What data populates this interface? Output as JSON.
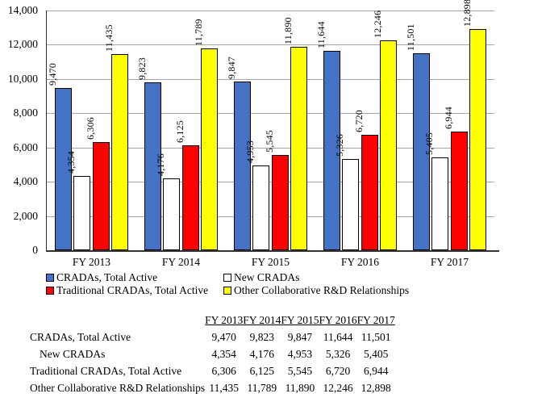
{
  "chart_data": {
    "type": "bar",
    "title": "",
    "xlabel": "",
    "ylabel": "",
    "categories": [
      "FY 2013",
      "FY 2014",
      "FY 2015",
      "FY 2016",
      "FY 2017"
    ],
    "series": [
      {
        "name": "CRADAs, Total Active",
        "color": "#4472C4",
        "values": [
          9470,
          9823,
          9847,
          11644,
          11501
        ]
      },
      {
        "name": "New CRADAs",
        "color": "#FFFFFF",
        "values": [
          4354,
          4176,
          4953,
          5326,
          5405
        ]
      },
      {
        "name": "Traditional CRADAs, Total Active",
        "color": "#FF0000",
        "values": [
          6306,
          6125,
          5545,
          6720,
          6944
        ]
      },
      {
        "name": "Other Collaborative R&D Relationships",
        "color": "#FFFF00",
        "values": [
          11435,
          11789,
          11890,
          12246,
          12898
        ]
      }
    ],
    "ylim": [
      0,
      14000
    ],
    "ytick_interval": 2000,
    "ytick_labels": [
      "0",
      "2,000",
      "4,000",
      "6,000",
      "8,000",
      "10,000",
      "12,000",
      "14,000"
    ],
    "grid": true,
    "gridline_color": "#A6A6A6",
    "axis_color": "#333333",
    "bar_border_color": "#000000",
    "value_labels_rotated": true,
    "legend_position": "bottom"
  },
  "table": {
    "column_headers": [
      "FY 2013",
      "FY 2014",
      "FY 2015",
      "FY 2016",
      "FY 2017"
    ],
    "rows": [
      {
        "label": "CRADAs, Total Active",
        "indent": false,
        "values": [
          "9,470",
          "9,823",
          "9,847",
          "11,644",
          "11,501"
        ]
      },
      {
        "label": "New CRADAs",
        "indent": true,
        "values": [
          "4,354",
          "4,176",
          "4,953",
          "5,326",
          "5,405"
        ]
      },
      {
        "label": "Traditional CRADAs, Total Active",
        "indent": false,
        "values": [
          "6,306",
          "6,125",
          "5,545",
          "6,720",
          "6,944"
        ]
      },
      {
        "label": "Other Collaborative R&D Relationships",
        "indent": false,
        "values": [
          "11,435",
          "11,789",
          "11,890",
          "12,246",
          "12,898"
        ]
      }
    ]
  }
}
